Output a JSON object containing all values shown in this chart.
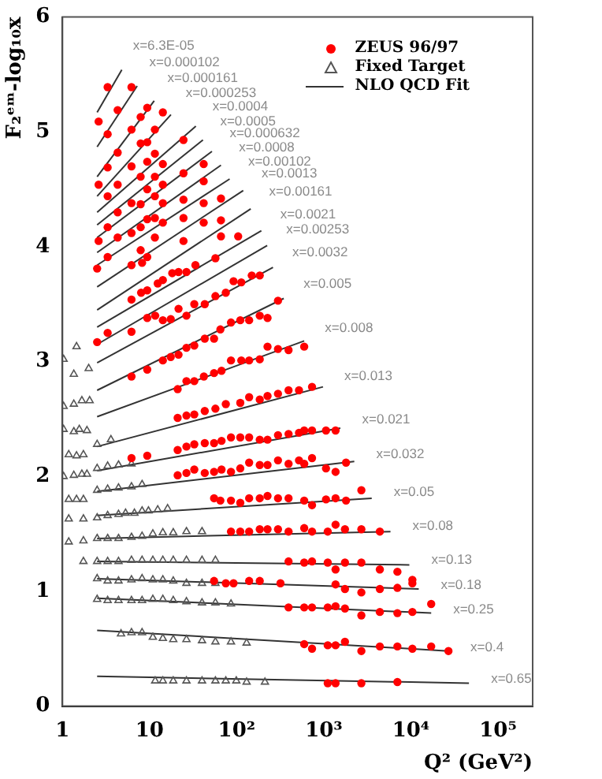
{
  "chart_data": {
    "type": "scatter",
    "xlabel": "Q² (GeV²)",
    "ylabel": "F₂ᵉᵐ-log₁₀x",
    "log": "x",
    "grid": false,
    "legend": "top right",
    "xlim": [
      1,
      250000
    ],
    "xticks": [
      {
        "value": 1,
        "label": "1"
      },
      {
        "value": 10,
        "label": "10"
      },
      {
        "value": 100,
        "label": "10²"
      },
      {
        "value": 1000,
        "label": "10³"
      },
      {
        "value": 10000,
        "label": "10⁴"
      },
      {
        "value": 100000,
        "label": "10⁵"
      }
    ],
    "ylim": [
      0,
      6
    ],
    "yticks": [
      0,
      1,
      2,
      3,
      4,
      5,
      6
    ],
    "series": [
      {
        "name": "ZEUS 96/97",
        "marker": "circle",
        "color": "#ff0000",
        "x": [
          2.6,
          2.6,
          2.6,
          2.5,
          2.5,
          3.3,
          3.3,
          3.3,
          3.3,
          3.3,
          3.3,
          3.3,
          4.3,
          4.3,
          4.3,
          4.3,
          4.3,
          6.2,
          6.2,
          6.2,
          6.2,
          6.2,
          6.2,
          6.2,
          6.2,
          6.2,
          6.2,
          7.9,
          7.9,
          7.9,
          7.9,
          7.9,
          7.9,
          8.0,
          8.2,
          9.4,
          9.4,
          9.4,
          9.4,
          9.4,
          9.4,
          9.4,
          9.4,
          9.4,
          9.4,
          11.5,
          11.5,
          11.5,
          11.5,
          11.5,
          11.5,
          11.6,
          12.4,
          14.2,
          14.2,
          14.2,
          14.2,
          14.2,
          14.2,
          14.2,
          14.2,
          17.5,
          17.5,
          18.2,
          21,
          21,
          21,
          21,
          21.5,
          21.5,
          21.5,
          24.5,
          24.5,
          24.5,
          24.5,
          24.5,
          26.5,
          26.5,
          26.5,
          26.5,
          26.5,
          26.5,
          26.5,
          32.6,
          32.6,
          32.6,
          32.6,
          32.6,
          32.6,
          33.6,
          41.8,
          41.8,
          41.8,
          41.8,
          43,
          43,
          42,
          43,
          43,
          43,
          55,
          55,
          55,
          55,
          55,
          55,
          57,
          57,
          57,
          65,
          65,
          66,
          66,
          66,
          67,
          67,
          67,
          75,
          75,
          75,
          86,
          86,
          86,
          86,
          86,
          86,
          92,
          92,
          104,
          110,
          110,
          110,
          110,
          110,
          110,
          113,
          113,
          139,
          139,
          139,
          139,
          139,
          139,
          139,
          139,
          149,
          184,
          184,
          184,
          184,
          184,
          184,
          184,
          184,
          184,
          226,
          226,
          226,
          226,
          226,
          226,
          226,
          298,
          298,
          298,
          298,
          298,
          298,
          298,
          318,
          394,
          394,
          394,
          394,
          394,
          394,
          394,
          394,
          519,
          519,
          519,
          596,
          596,
          596,
          596,
          596,
          596,
          596,
          596,
          733,
          733,
          733,
          733,
          733,
          733,
          733,
          733,
          1060,
          1060,
          1060,
          1110,
          1110,
          1110,
          1110,
          1110,
          1365,
          1365,
          1365,
          1365,
          1365,
          1365,
          1365,
          1365,
          1365,
          1750,
          1750,
          1750,
          1750,
          1750,
          1800,
          1800,
          2700,
          2700,
          2700,
          2700,
          2700,
          2700,
          2700,
          4400,
          4400,
          4400,
          4400,
          4400,
          7000,
          7000,
          7000,
          7000,
          7000,
          10400,
          10400,
          10400,
          10400,
          17100,
          17100,
          27000
        ],
        "values": [
          5.09,
          4.54,
          4.05,
          3.81,
          3.17,
          5.39,
          4.98,
          4.69,
          4.44,
          4.17,
          3.91,
          3.25,
          5.19,
          4.82,
          4.54,
          4.3,
          4.08,
          5.39,
          5.02,
          4.7,
          4.38,
          4.12,
          3.84,
          3.54,
          3.26,
          2.87,
          2.16,
          5.13,
          4.9,
          4.61,
          4.37,
          4.17,
          3.97,
          3.6,
          3.86,
          5.21,
          4.91,
          4.74,
          4.5,
          4.24,
          3.91,
          3.62,
          3.38,
          2.93,
          2.18,
          5.02,
          4.81,
          4.61,
          4.44,
          4.25,
          4.08,
          3.4,
          3.68,
          5.17,
          4.72,
          4.54,
          4.38,
          4.21,
          3.71,
          3.36,
          3.01,
          3.37,
          3.04,
          3.77,
          2.76,
          2.51,
          2.23,
          2.01,
          3.78,
          3.46,
          3.06,
          4.93,
          4.64,
          4.41,
          4.25,
          4.05,
          3.78,
          3.4,
          3.12,
          2.83,
          2.53,
          2.26,
          2.03,
          3.5,
          3.14,
          2.83,
          2.54,
          2.28,
          2.06,
          3.84,
          4.72,
          4.57,
          4.38,
          4.21,
          3.5,
          3.2,
          2.87,
          2.57,
          2.29,
          2.03,
          3.2,
          2.9,
          2.29,
          2.04,
          1.81,
          1.09,
          3.9,
          3.57,
          2.59,
          3.28,
          1.79,
          4.42,
          4.23,
          4.09,
          2.92,
          2.31,
          2.06,
          3.6,
          2.63,
          1.07,
          3.34,
          3.01,
          2.34,
          2.04,
          1.79,
          1.52,
          3.7,
          1.07,
          4.09,
          3.36,
          2.64,
          2.34,
          2.07,
          1.77,
          1.52,
          3.69,
          3.01,
          3.36,
          3.01,
          2.69,
          2.34,
          2.12,
          1.81,
          1.52,
          1.09,
          3.75,
          3.75,
          3.4,
          3.02,
          2.67,
          2.32,
          2.1,
          1.81,
          1.54,
          1.09,
          3.38,
          3.13,
          2.7,
          2.32,
          2.1,
          1.83,
          1.54,
          3.53,
          3.11,
          2.72,
          2.36,
          2.14,
          1.81,
          1.54,
          1.07,
          3.1,
          2.75,
          2.37,
          2.11,
          1.81,
          1.52,
          1.26,
          0.86,
          2.75,
          2.38,
          2.14,
          3.13,
          2.4,
          2.11,
          1.79,
          1.55,
          1.25,
          0.86,
          0.54,
          2.78,
          2.4,
          2.16,
          1.75,
          1.52,
          1.26,
          0.86,
          0.5,
          2.4,
          2.07,
          1.8,
          1.52,
          1.25,
          0.86,
          0.53,
          0.2,
          2.4,
          2.04,
          1.81,
          1.58,
          1.19,
          1.06,
          0.87,
          0.53,
          0.2,
          1.54,
          1.25,
          1.02,
          0.85,
          0.56,
          2.12,
          1.79,
          1.88,
          1.54,
          1.25,
          0.99,
          0.79,
          0.48,
          0.2,
          1.52,
          1.19,
          1.02,
          0.82,
          0.52,
          1.17,
          1.03,
          0.81,
          0.52,
          0.21,
          1.1,
          1.07,
          0.82,
          0.5,
          0.89,
          0.52,
          0.48
        ]
      },
      {
        "name": "Fixed Target",
        "marker": "triangle",
        "color": "#555555",
        "x": [
          1.45,
          1.03,
          1.35,
          2.0,
          1.03,
          1.35,
          1.67,
          2.05,
          1.03,
          1.35,
          1.56,
          1.91,
          1.18,
          1.45,
          1.74,
          1.03,
          1.35,
          1.67,
          1.91,
          1.18,
          1.45,
          1.74,
          1.18,
          1.74,
          2.5,
          3.3,
          4.4,
          5.3,
          6.7,
          8.2,
          9.7,
          12.4,
          16.1,
          1.18,
          1.74,
          2.5,
          3.3,
          4.4,
          6.2,
          8.2,
          10.9,
          14.2,
          18.7,
          26.5,
          40,
          1.74,
          2.5,
          3.3,
          4.4,
          6.2,
          8.2,
          10.9,
          14.2,
          18.7,
          26.5,
          40,
          57,
          2.5,
          3.3,
          4.4,
          6.2,
          8.2,
          10.9,
          14.2,
          18.7,
          26.5,
          40,
          57,
          2.5,
          3.3,
          4.4,
          6.2,
          8.2,
          10.9,
          14.2,
          18.7,
          26.5,
          40,
          57,
          86,
          4.7,
          6.2,
          8.2,
          10.9,
          14.2,
          18.7,
          26.5,
          40,
          57,
          86,
          130,
          11.6,
          14.2,
          18.7,
          26.5,
          40,
          57,
          75,
          99,
          130,
          211,
          2.5,
          3.3,
          4.4,
          6.2,
          8.2,
          2.5,
          3.3,
          4.4,
          6.2,
          2.5,
          3.6
        ],
        "values": [
          3.13,
          3.02,
          2.89,
          2.94,
          2.61,
          2.63,
          2.66,
          2.66,
          2.41,
          2.39,
          2.41,
          2.4,
          2.19,
          2.18,
          2.19,
          2.0,
          2.01,
          2.02,
          2.02,
          1.8,
          1.8,
          1.8,
          1.63,
          1.63,
          1.64,
          1.66,
          1.67,
          1.68,
          1.68,
          1.7,
          1.7,
          1.71,
          1.72,
          1.43,
          1.44,
          1.46,
          1.46,
          1.46,
          1.47,
          1.48,
          1.5,
          1.51,
          1.51,
          1.52,
          1.52,
          1.26,
          1.26,
          1.26,
          1.26,
          1.27,
          1.27,
          1.27,
          1.27,
          1.27,
          1.27,
          1.27,
          1.27,
          1.11,
          1.09,
          1.09,
          1.1,
          1.11,
          1.1,
          1.1,
          1.09,
          1.07,
          1.07,
          1.07,
          0.93,
          0.92,
          0.92,
          0.92,
          0.92,
          0.93,
          0.93,
          0.92,
          0.91,
          0.9,
          0.9,
          0.89,
          0.63,
          0.64,
          0.64,
          0.6,
          0.59,
          0.58,
          0.58,
          0.57,
          0.56,
          0.56,
          0.55,
          0.22,
          0.22,
          0.22,
          0.22,
          0.22,
          0.22,
          0.22,
          0.22,
          0.21,
          0.21,
          1.88,
          1.89,
          1.9,
          1.91,
          1.93,
          2.07,
          2.09,
          2.1,
          2.11,
          2.28,
          2.32
        ]
      },
      {
        "name": "NLO QCD Fit",
        "type": "line",
        "color": "#333333",
        "x": [
          2.5,
          4.8
        ],
        "values": [
          5.17,
          5.54
        ]
      },
      {
        "type": "line",
        "color": "#333333",
        "x": [
          2.5,
          7.2
        ],
        "values": [
          4.87,
          5.4
        ]
      },
      {
        "type": "line",
        "color": "#333333",
        "x": [
          2.5,
          11.3
        ],
        "values": [
          4.61,
          5.27
        ]
      },
      {
        "type": "line",
        "color": "#333333",
        "x": [
          2.5,
          17.6
        ],
        "values": [
          4.44,
          5.15
        ]
      },
      {
        "type": "line",
        "color": "#333333",
        "x": [
          2.5,
          34
        ],
        "values": [
          4.3,
          5.05
        ]
      },
      {
        "type": "line",
        "color": "#333333",
        "x": [
          2.5,
          41
        ],
        "values": [
          4.19,
          4.93
        ]
      },
      {
        "type": "line",
        "color": "#333333",
        "x": [
          2.5,
          52
        ],
        "values": [
          4.08,
          4.83
        ]
      },
      {
        "type": "line",
        "color": "#333333",
        "x": [
          2.5,
          66
        ],
        "values": [
          3.95,
          4.71
        ]
      },
      {
        "type": "line",
        "color": "#333333",
        "x": [
          2.5,
          83
        ],
        "values": [
          3.84,
          4.59
        ]
      },
      {
        "type": "line",
        "color": "#333333",
        "x": [
          2.5,
          119
        ],
        "values": [
          3.65,
          4.49
        ]
      },
      {
        "type": "line",
        "color": "#333333",
        "x": [
          2.5,
          145
        ],
        "values": [
          3.45,
          4.33
        ]
      },
      {
        "type": "line",
        "color": "#333333",
        "x": [
          2.5,
          192
        ],
        "values": [
          3.3,
          4.14
        ]
      },
      {
        "type": "line",
        "color": "#333333",
        "x": [
          2.5,
          224
        ],
        "values": [
          3.15,
          4.01
        ]
      },
      {
        "type": "line",
        "color": "#333333",
        "x": [
          2.5,
          261
        ],
        "values": [
          2.99,
          3.82
        ]
      },
      {
        "type": "line",
        "color": "#333333",
        "x": [
          2.5,
          347
        ],
        "values": [
          2.75,
          3.55
        ]
      },
      {
        "type": "line",
        "color": "#333333",
        "x": [
          2.5,
          596
        ],
        "values": [
          2.52,
          3.18
        ]
      },
      {
        "type": "line",
        "color": "#333333",
        "x": [
          2.5,
          980
        ],
        "values": [
          2.26,
          2.78
        ]
      },
      {
        "type": "line",
        "color": "#333333",
        "x": [
          2.5,
          1550
        ],
        "values": [
          2.05,
          2.42
        ]
      },
      {
        "type": "line",
        "color": "#333333",
        "x": [
          2.5,
          2240
        ],
        "values": [
          1.87,
          2.13
        ]
      },
      {
        "type": "line",
        "color": "#333333",
        "x": [
          2.5,
          3550
        ],
        "values": [
          1.66,
          1.81
        ]
      },
      {
        "type": "line",
        "color": "#333333",
        "x": [
          2.5,
          5830
        ],
        "values": [
          1.46,
          1.52
        ]
      },
      {
        "type": "line",
        "color": "#333333",
        "x": [
          2.5,
          9600
        ],
        "values": [
          1.26,
          1.23
        ]
      },
      {
        "type": "line",
        "color": "#333333",
        "x": [
          2.5,
          12300
        ],
        "values": [
          1.11,
          1.02
        ]
      },
      {
        "type": "line",
        "color": "#333333",
        "x": [
          2.5,
          17100
        ],
        "values": [
          0.94,
          0.81
        ]
      },
      {
        "type": "line",
        "color": "#333333",
        "x": [
          2.5,
          27000
        ],
        "values": [
          0.66,
          0.48
        ]
      },
      {
        "type": "line",
        "color": "#333333",
        "x": [
          2.5,
          46400
        ],
        "values": [
          0.26,
          0.2
        ]
      }
    ],
    "annotations": [
      "x=6.3E-05",
      "x=0.000102",
      "x=0.000161",
      "x=0.000253",
      "x=0.0004",
      "x=0.0005",
      "x=0.000632",
      "x=0.0008",
      "x=0.00102",
      "x=0.0013",
      "x=0.00161",
      "x=0.0021",
      "x=0.00253",
      "x=0.0032",
      "x=0.005",
      "x=0.008",
      "x=0.013",
      "x=0.021",
      "x=0.032",
      "x=0.05",
      "x=0.08",
      "x=0.13",
      "x=0.18",
      "x=0.25",
      "x=0.4",
      "x=0.65"
    ]
  }
}
